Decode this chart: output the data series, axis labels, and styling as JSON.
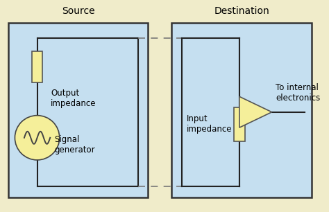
{
  "bg_color": "#f0ecca",
  "box_fill": "#c5dff0",
  "box_edge": "#333333",
  "resistor_fill": "#f5ef9a",
  "resistor_edge": "#555555",
  "circle_fill": "#f5ef9a",
  "circle_edge": "#444444",
  "line_color": "#222222",
  "dashed_color": "#777777",
  "title_source": "Source",
  "title_dest": "Destination",
  "label_output": "Output\nimpedance",
  "label_signal": "Signal\ngenerator",
  "label_input": "Input\nimpedance",
  "label_to": "To internal\nelectronics",
  "font_size_title": 10,
  "font_size_label": 8.5
}
